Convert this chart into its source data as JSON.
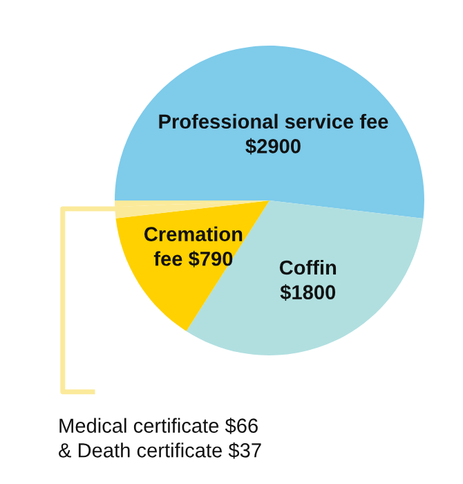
{
  "chart_data": {
    "type": "pie",
    "categories": [
      "Professional service fee\n$2900",
      "Coffin\n$1800",
      "Cremation\nfee $790",
      null,
      null
    ],
    "values": [
      2900,
      1800,
      790,
      66,
      37
    ],
    "colors": [
      "#7ecbea",
      "#b1dfe0",
      "#ffd100",
      "#fbea9a",
      "#fbea9a"
    ],
    "annotations": [
      "Medical certificate $66\n& Death certificate $37"
    ]
  }
}
